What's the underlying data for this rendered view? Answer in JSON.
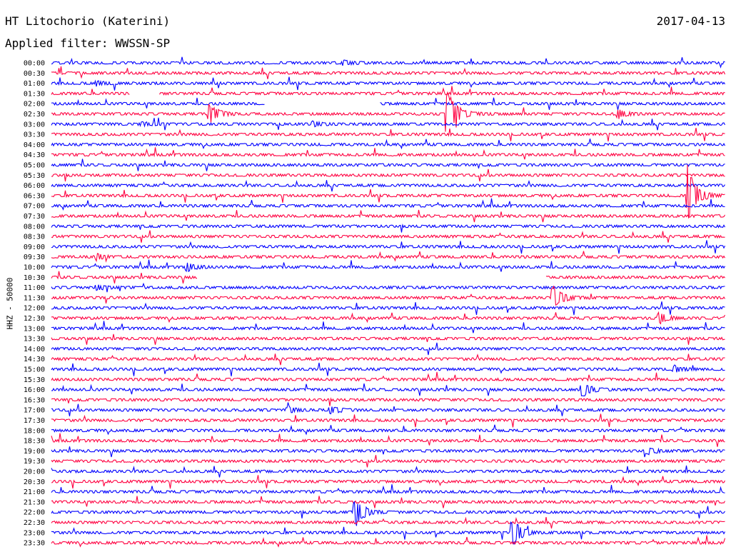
{
  "header": {
    "station": "HT Litochorio (Katerini)",
    "date": "2017-04-13",
    "filter": "Applied filter: WWSSN-SP",
    "channel": "HHZ - 50000"
  },
  "chart_data": {
    "type": "line",
    "title": "HT Litochorio (Katerini)",
    "date": "2017-04-13",
    "filter": "WWSSN-SP",
    "ylabel": "HHZ - 50000",
    "row_labels": [
      "00:00",
      "00:30",
      "01:00",
      "01:30",
      "02:00",
      "02:30",
      "03:00",
      "03:30",
      "04:00",
      "04:30",
      "05:00",
      "05:30",
      "06:00",
      "06:30",
      "07:00",
      "07:30",
      "08:00",
      "08:30",
      "09:00",
      "09:30",
      "10:00",
      "10:30",
      "11:00",
      "11:30",
      "12:00",
      "12:30",
      "13:00",
      "13:30",
      "14:00",
      "14:30",
      "15:00",
      "15:30",
      "16:00",
      "16:30",
      "17:00",
      "17:30",
      "18:00",
      "18:30",
      "19:00",
      "19:30",
      "20:00",
      "20:30",
      "21:00",
      "21:30",
      "22:00",
      "22:30",
      "23:00",
      "23:30"
    ],
    "colors": [
      "#0000ff",
      "#ff0040"
    ],
    "row_minutes": 30,
    "events": [
      {
        "row": 0,
        "minute": 13,
        "amp": 4
      },
      {
        "row": 2,
        "minute": 2,
        "amp": 3
      },
      {
        "row": 5,
        "minute": 7,
        "amp": 16
      },
      {
        "row": 5,
        "minute": 17.6,
        "amp": 40
      },
      {
        "row": 5,
        "minute": 25.2,
        "amp": 7
      },
      {
        "row": 6,
        "minute": 4,
        "amp": 3
      },
      {
        "row": 6,
        "minute": 11.6,
        "amp": 4
      },
      {
        "row": 13,
        "minute": 28.3,
        "amp": 45
      },
      {
        "row": 19,
        "minute": 2,
        "amp": 4
      },
      {
        "row": 20,
        "minute": 6,
        "amp": 6
      },
      {
        "row": 22,
        "minute": 2,
        "amp": 4
      },
      {
        "row": 23,
        "minute": 22.3,
        "amp": 20
      },
      {
        "row": 25,
        "minute": 27,
        "amp": 9
      },
      {
        "row": 30,
        "minute": 27.7,
        "amp": 5
      },
      {
        "row": 32,
        "minute": 23.6,
        "amp": 12
      },
      {
        "row": 34,
        "minute": 10.5,
        "amp": 5
      },
      {
        "row": 34,
        "minute": 12.4,
        "amp": 6
      },
      {
        "row": 38,
        "minute": 26.5,
        "amp": 5
      },
      {
        "row": 44,
        "minute": 13.5,
        "amp": 24
      },
      {
        "row": 46,
        "minute": 20.5,
        "amp": 22
      }
    ],
    "gaps": [
      {
        "row": 3,
        "from": 3.5,
        "to": 4.8
      },
      {
        "row": 4,
        "from": 9.5,
        "to": 14.6
      },
      {
        "row": 21,
        "from": 6.5,
        "to": 22.0
      }
    ],
    "grid": false
  }
}
